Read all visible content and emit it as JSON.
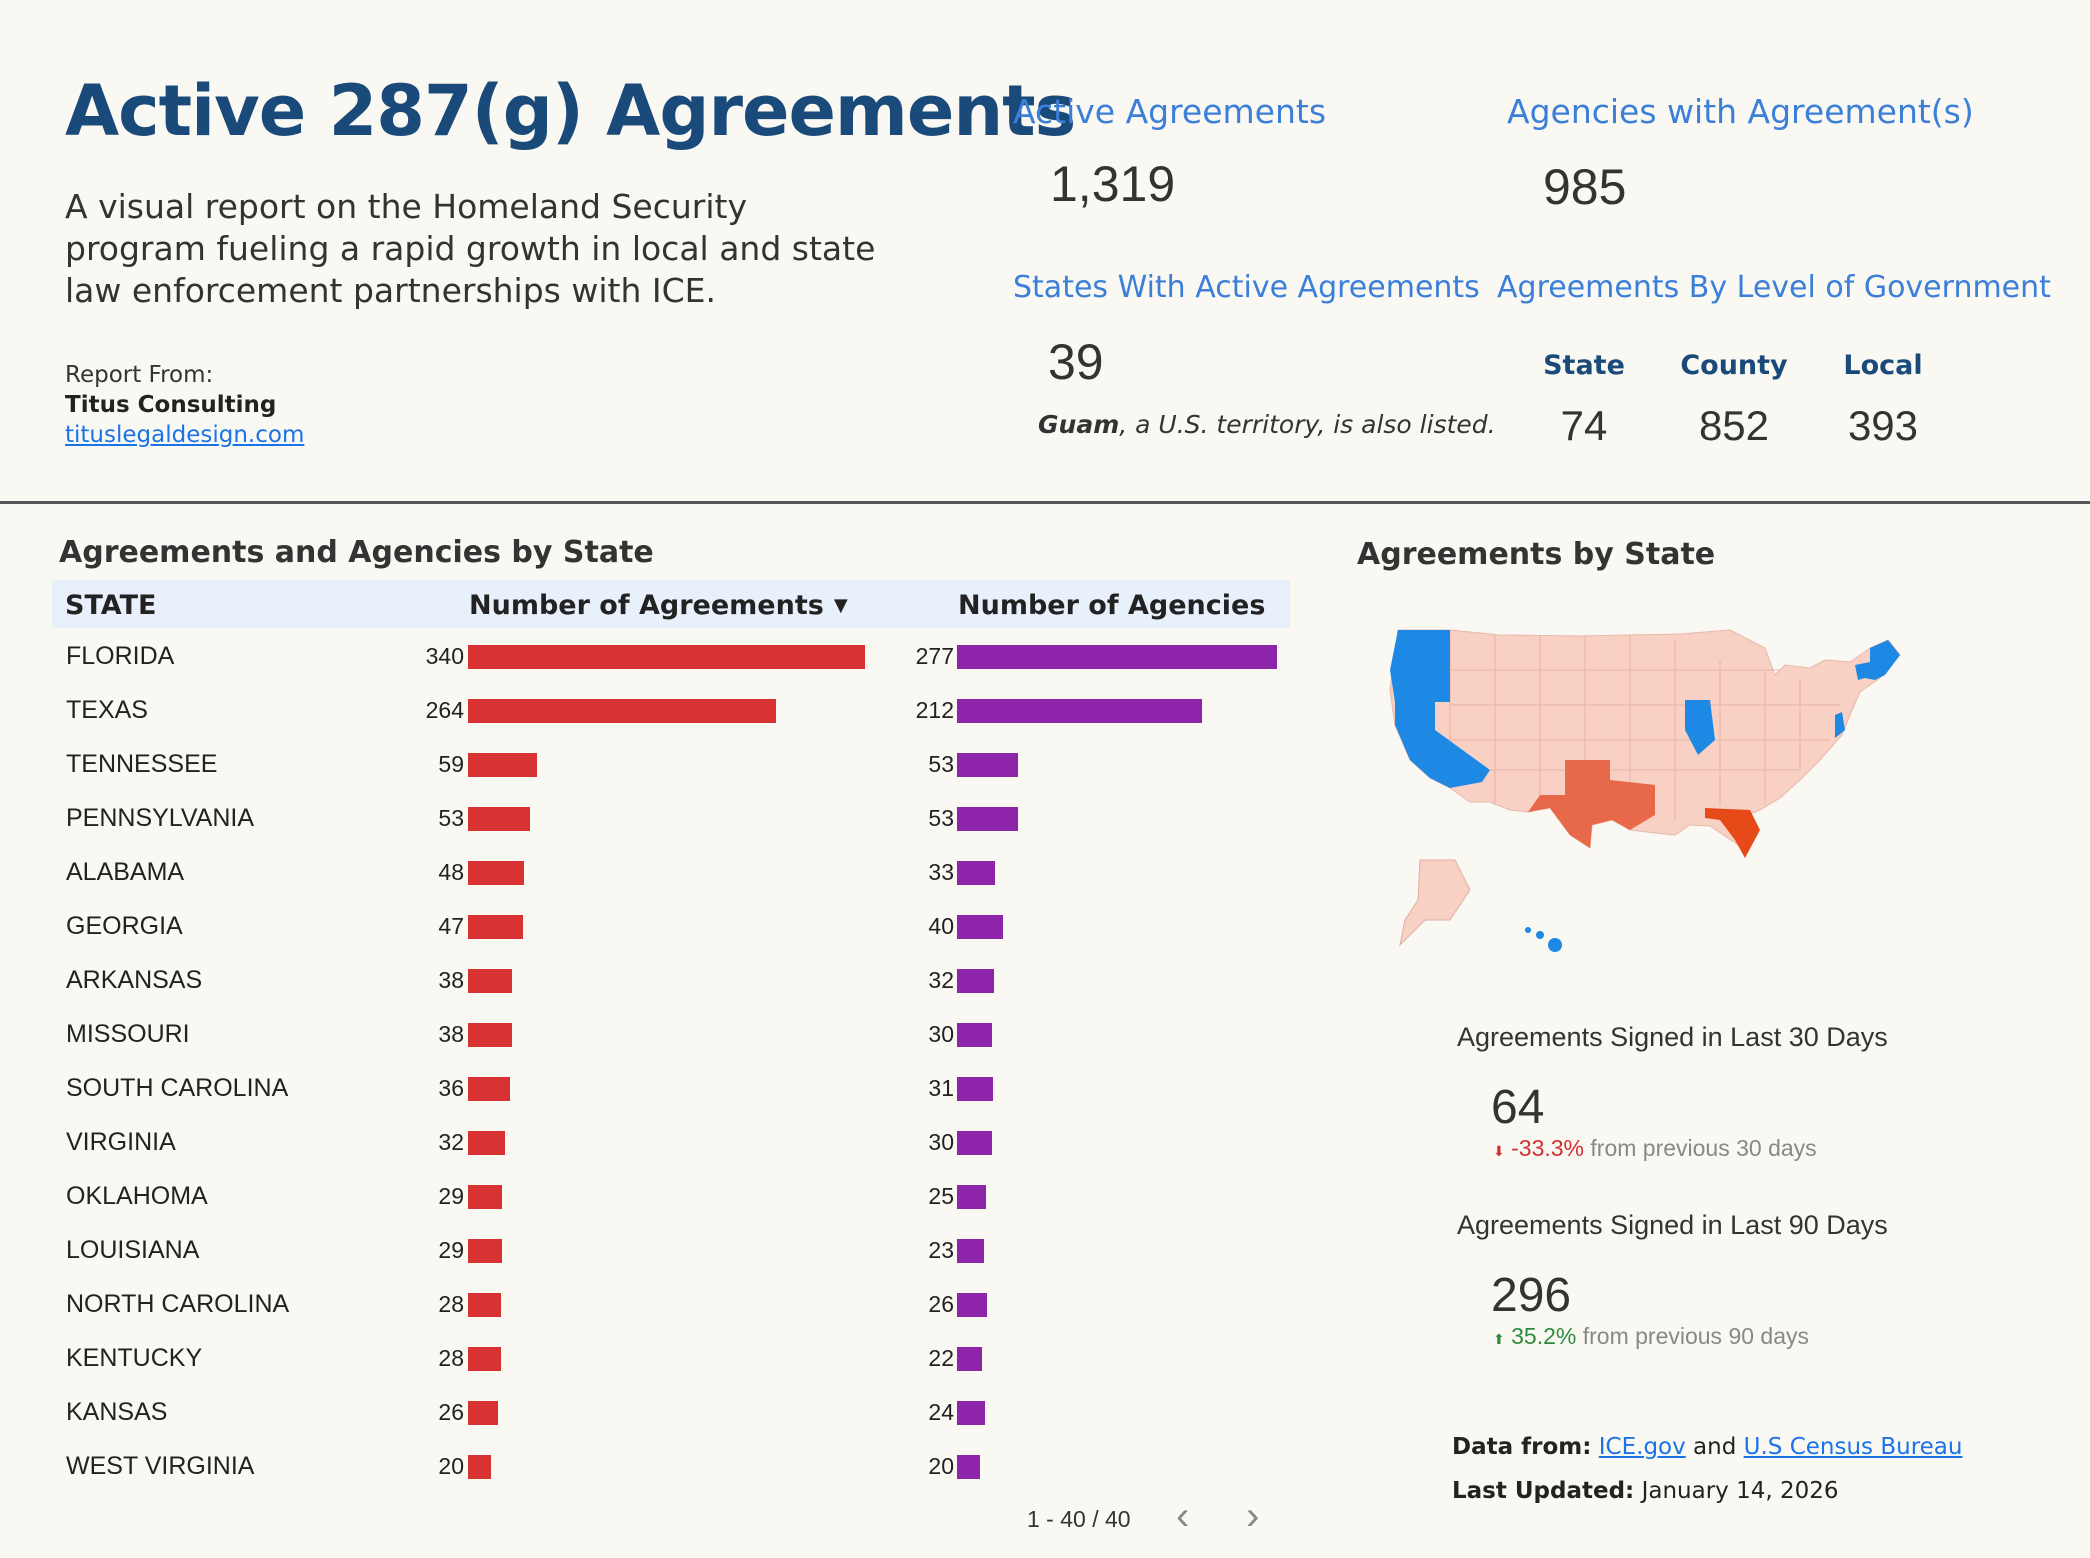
{
  "header": {
    "title": "Active 287(g) Agreements",
    "subtitle": "A visual report on the Homeland Security program fueling a rapid growth in local and state law enforcement partnerships with ICE.",
    "report_from_label": "Report From:",
    "report_org": "Titus Consulting",
    "report_link": "tituslegaldesign.com"
  },
  "kpis": {
    "active_agreements": {
      "label": "Active Agreements",
      "value": "1,319"
    },
    "agencies": {
      "label": "Agencies with Agreement(s)",
      "value": "985"
    },
    "states": {
      "label": "States With Active Agreements",
      "value": "39",
      "note_bold": "Guam",
      "note_rest": ", a U.S. territory, is also listed."
    },
    "by_level": {
      "label": "Agreements By Level of Government",
      "levels": [
        {
          "name": "State",
          "value": "74"
        },
        {
          "name": "County",
          "value": "852"
        },
        {
          "name": "Local",
          "value": "393"
        }
      ]
    }
  },
  "table": {
    "title": "Agreements and Agencies by State",
    "col_state": "STATE",
    "col_agreements": "Number of Agreements",
    "sort_icon": "▼",
    "col_agencies": "Number of Agencies",
    "pager": "1 - 40 / 40",
    "prev_icon": "‹",
    "next_icon": "›",
    "agreement_color": "#d93232",
    "agency_color": "#8e24aa"
  },
  "chart_data": {
    "type": "bar",
    "categories": [
      "FLORIDA",
      "TEXAS",
      "TENNESSEE",
      "PENNSYLVANIA",
      "ALABAMA",
      "GEORGIA",
      "ARKANSAS",
      "MISSOURI",
      "SOUTH CAROLINA",
      "VIRGINIA",
      "OKLAHOMA",
      "LOUISIANA",
      "NORTH CAROLINA",
      "KENTUCKY",
      "KANSAS",
      "WEST VIRGINIA"
    ],
    "series": [
      {
        "name": "Number of Agreements",
        "values": [
          340,
          264,
          59,
          53,
          48,
          47,
          38,
          38,
          36,
          32,
          29,
          29,
          28,
          28,
          26,
          20
        ]
      },
      {
        "name": "Number of Agencies",
        "values": [
          277,
          212,
          53,
          53,
          33,
          40,
          32,
          30,
          31,
          30,
          25,
          23,
          26,
          22,
          24,
          20
        ]
      }
    ]
  },
  "map": {
    "title": "Agreements by State",
    "color_zero": "#1e88e5",
    "color_low": "#f8d0c4",
    "color_mid": "#e8684a",
    "color_high": "#e64a19"
  },
  "stats": {
    "last30": {
      "label": "Agreements Signed in Last 30 Days",
      "value": "64",
      "change": "-33.3%",
      "change_suffix": " from previous 30 days",
      "arrow": "⬇"
    },
    "last90": {
      "label": "Agreements Signed in Last 90 Days",
      "value": "296",
      "change": "35.2%",
      "change_suffix": " from previous 90 days",
      "arrow": "⬆"
    }
  },
  "footer": {
    "data_from_label": "Data from:",
    "source1": "ICE.gov",
    "and": "and",
    "source2": "U.S Census Bureau",
    "last_updated_label": "Last Updated:",
    "last_updated": "January 14, 2026"
  }
}
